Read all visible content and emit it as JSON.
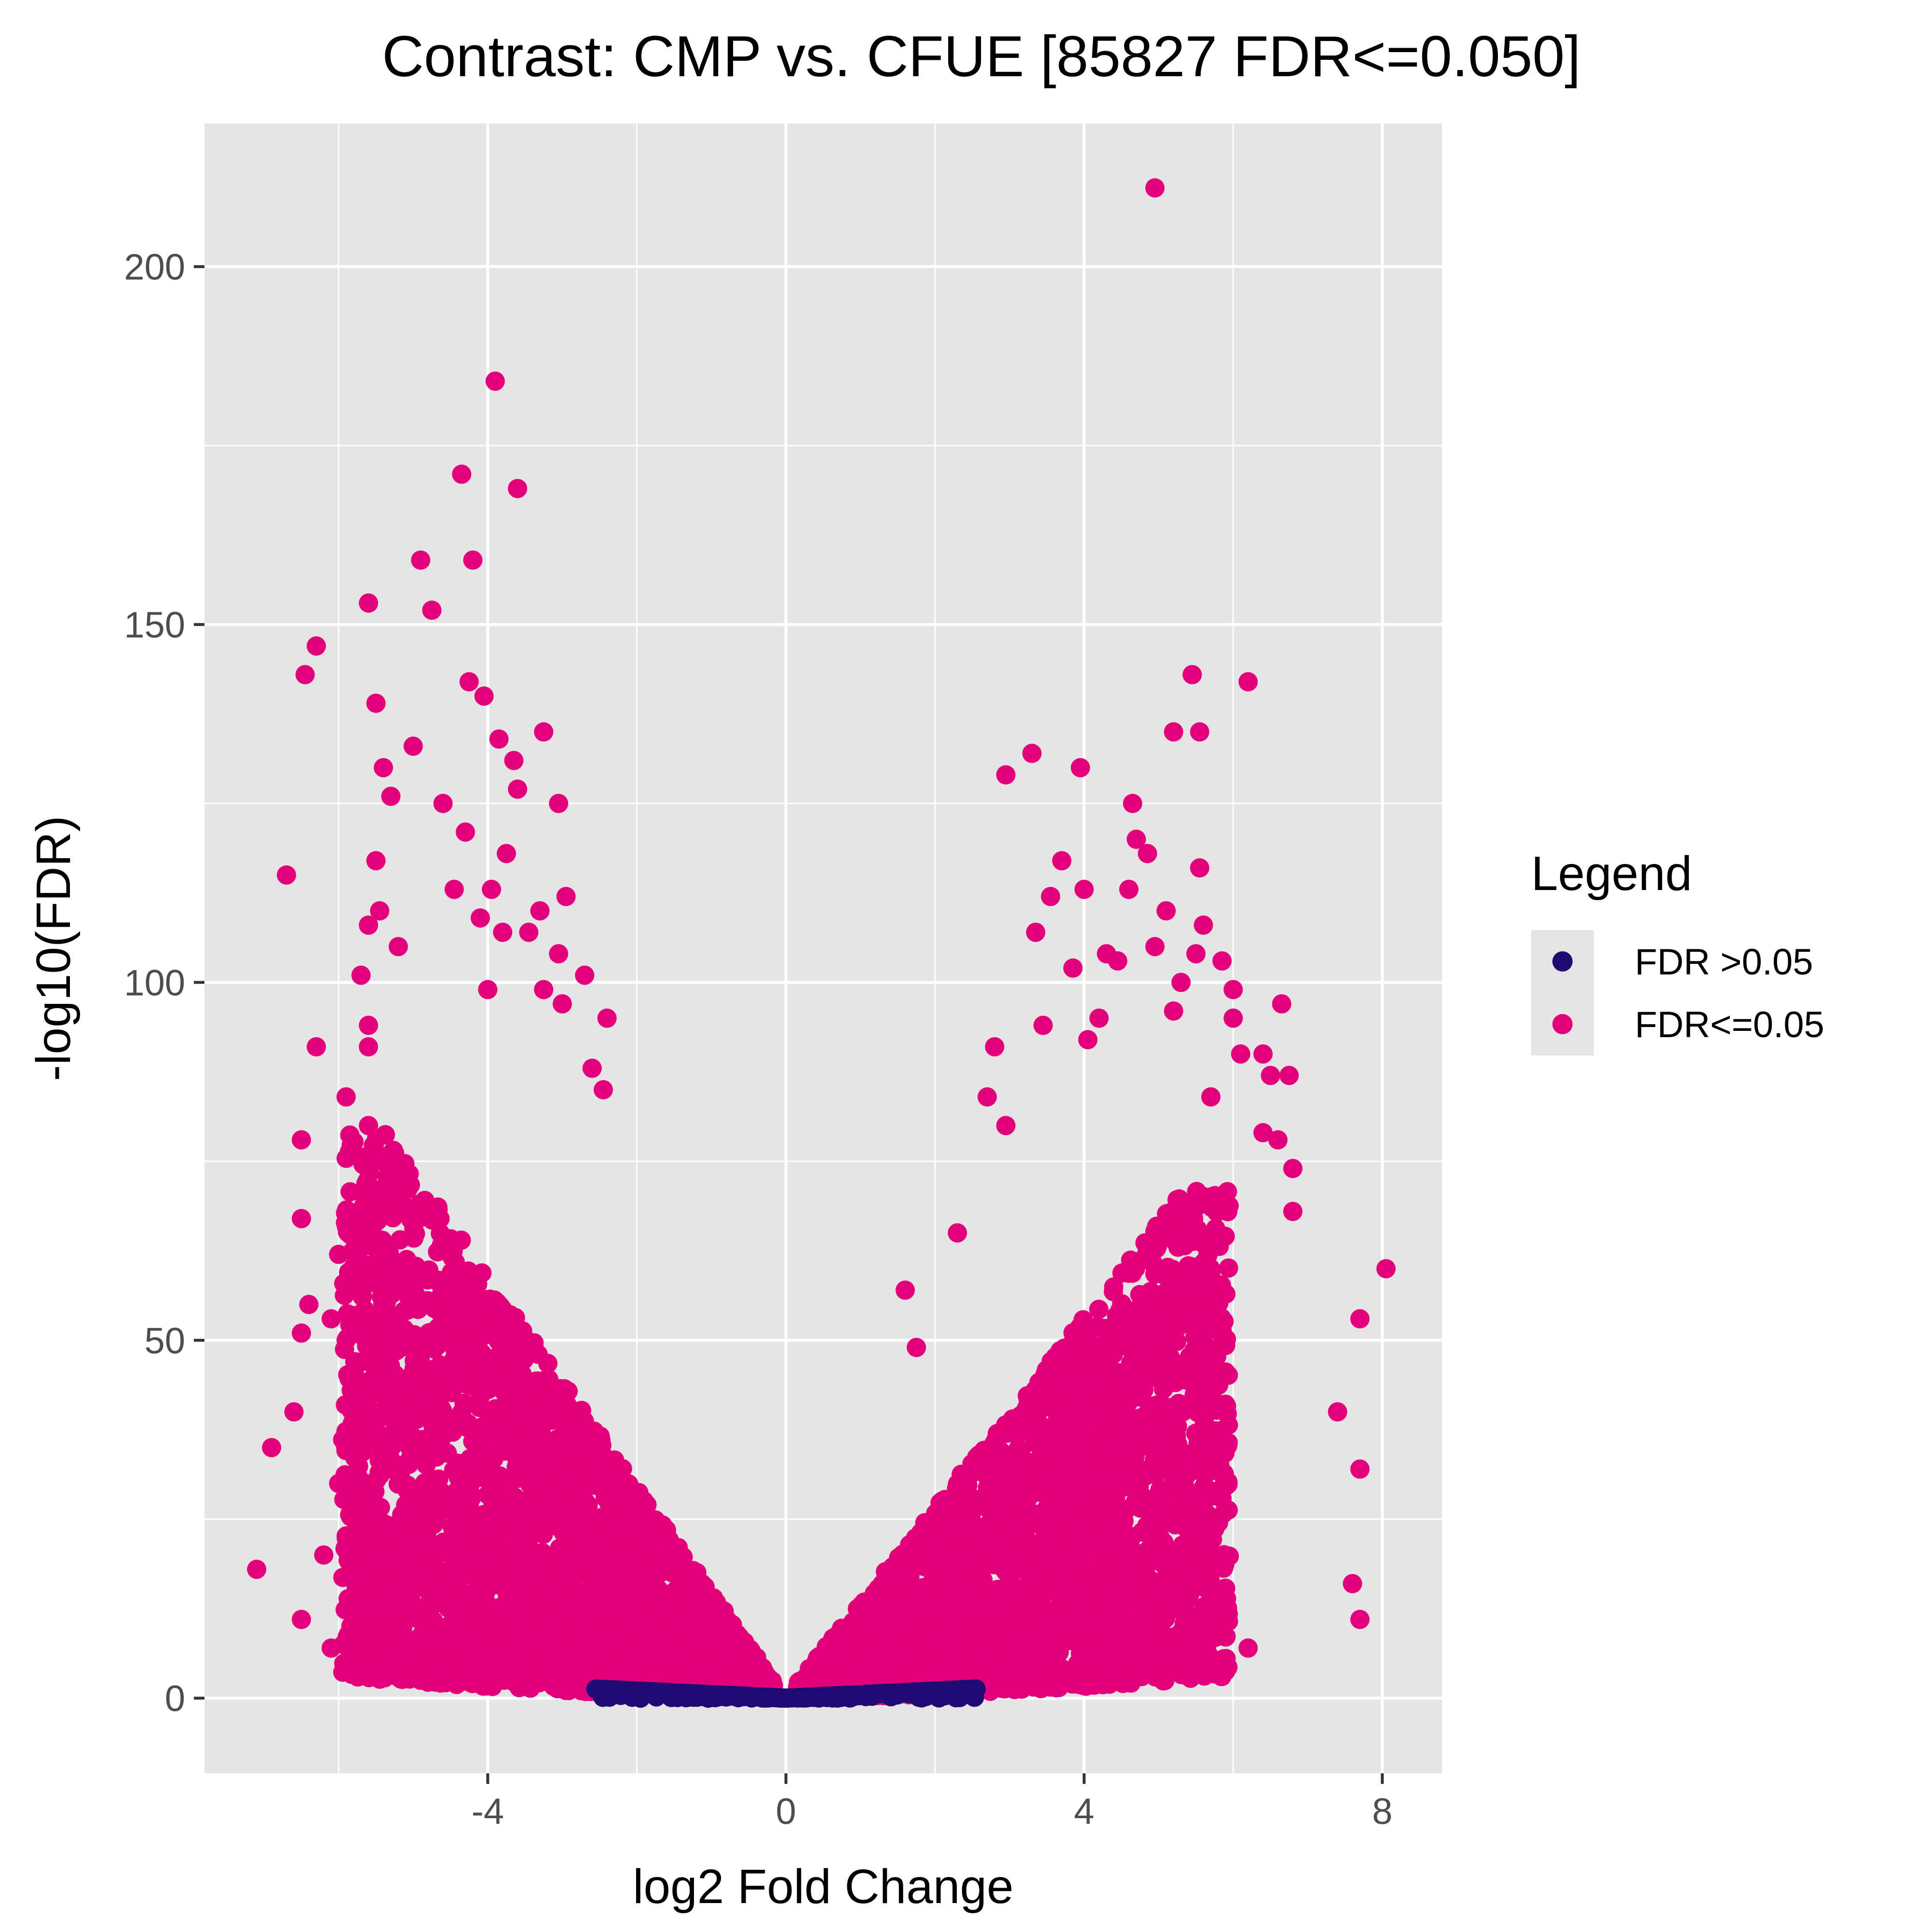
{
  "chart_data": {
    "type": "scatter",
    "title": "Contrast: CMP vs. CFUE  [85827 FDR<=0.050]",
    "xlabel": "log2 Fold Change",
    "ylabel": "-log10(FDR)",
    "xlim": [
      -7.8,
      8.8
    ],
    "ylim": [
      -10.5,
      220
    ],
    "x_ticks": [
      -4,
      0,
      4,
      8
    ],
    "x_tick_labels": [
      "-4",
      "0",
      "4",
      "8"
    ],
    "y_ticks": [
      0,
      50,
      100,
      150,
      200
    ],
    "y_tick_labels": [
      "0",
      "50",
      "100",
      "150",
      "200"
    ],
    "grid": true,
    "legend": {
      "title": "Legend",
      "placement": "right",
      "entries": [
        {
          "label": "FDR >0.05",
          "color": "#1f0a73"
        },
        {
          "label": "FDR<=0.05",
          "color": "#e5007b"
        }
      ]
    },
    "colors": {
      "panel_background": "#e5e5e5",
      "grid": "#ffffff",
      "not_significant": "#1f0a73",
      "significant": "#e5007b"
    },
    "series": [
      {
        "name": "FDR<=0.05",
        "color": "#e5007b",
        "density_note": "dense cloud of ~85827 points",
        "points": [
          [
            4.95,
            211
          ],
          [
            -3.9,
            184
          ],
          [
            -4.35,
            171
          ],
          [
            -3.6,
            169
          ],
          [
            -4.9,
            159
          ],
          [
            -4.2,
            159
          ],
          [
            -5.6,
            153
          ],
          [
            -4.75,
            152
          ],
          [
            -6.3,
            147
          ],
          [
            -6.45,
            143
          ],
          [
            5.45,
            143
          ],
          [
            6.2,
            142
          ],
          [
            -4.25,
            142
          ],
          [
            -4.05,
            140
          ],
          [
            -5.5,
            139
          ],
          [
            -3.85,
            134
          ],
          [
            -3.25,
            135
          ],
          [
            5.2,
            135
          ],
          [
            5.55,
            135
          ],
          [
            -5.0,
            133
          ],
          [
            3.3,
            132
          ],
          [
            2.95,
            129
          ],
          [
            3.95,
            130
          ],
          [
            -3.65,
            131
          ],
          [
            -5.4,
            130
          ],
          [
            -3.6,
            127
          ],
          [
            -5.3,
            126
          ],
          [
            -4.6,
            125
          ],
          [
            -3.05,
            125
          ],
          [
            4.65,
            125
          ],
          [
            -4.3,
            121
          ],
          [
            4.7,
            120
          ],
          [
            4.85,
            118
          ],
          [
            -3.75,
            118
          ],
          [
            -5.5,
            117
          ],
          [
            3.7,
            117
          ],
          [
            -6.7,
            115
          ],
          [
            5.55,
            116
          ],
          [
            -4.45,
            113
          ],
          [
            -3.95,
            113
          ],
          [
            -2.95,
            112
          ],
          [
            4.0,
            113
          ],
          [
            4.6,
            113
          ],
          [
            3.55,
            112
          ],
          [
            -5.45,
            110
          ],
          [
            -3.3,
            110
          ],
          [
            -4.1,
            109
          ],
          [
            5.1,
            110
          ],
          [
            -5.6,
            108
          ],
          [
            -3.8,
            107
          ],
          [
            -3.45,
            107
          ],
          [
            3.35,
            107
          ],
          [
            5.6,
            108
          ],
          [
            -5.2,
            105
          ],
          [
            -3.05,
            104
          ],
          [
            4.3,
            104
          ],
          [
            4.95,
            105
          ],
          [
            5.5,
            104
          ],
          [
            5.85,
            103
          ],
          [
            -5.7,
            101
          ],
          [
            -2.7,
            101
          ],
          [
            3.85,
            102
          ],
          [
            4.45,
            103
          ],
          [
            -4.0,
            99
          ],
          [
            -3.25,
            99
          ],
          [
            5.3,
            100
          ],
          [
            6.0,
            99
          ],
          [
            -5.6,
            94
          ],
          [
            -3.0,
            97
          ],
          [
            6.65,
            97
          ],
          [
            -6.3,
            91
          ],
          [
            -2.4,
            95
          ],
          [
            3.45,
            94
          ],
          [
            4.2,
            95
          ],
          [
            5.2,
            96
          ],
          [
            6.0,
            95
          ],
          [
            -5.6,
            91
          ],
          [
            -2.6,
            88
          ],
          [
            2.8,
            91
          ],
          [
            4.05,
            92
          ],
          [
            6.1,
            90
          ],
          [
            6.4,
            90
          ],
          [
            6.5,
            87
          ],
          [
            6.75,
            87
          ],
          [
            -5.9,
            84
          ],
          [
            -2.45,
            85
          ],
          [
            2.7,
            84
          ],
          [
            5.7,
            84
          ],
          [
            -5.6,
            80
          ],
          [
            2.95,
            80
          ],
          [
            6.4,
            79
          ],
          [
            -6.5,
            78
          ],
          [
            6.6,
            78
          ],
          [
            6.8,
            74
          ],
          [
            -6.5,
            67
          ],
          [
            6.8,
            68
          ],
          [
            -6.0,
            62
          ],
          [
            2.3,
            65
          ],
          [
            8.05,
            60
          ],
          [
            -6.4,
            55
          ],
          [
            -6.1,
            53
          ],
          [
            1.6,
            57
          ],
          [
            -6.5,
            51
          ],
          [
            -5.9,
            50
          ],
          [
            7.7,
            53
          ],
          [
            1.75,
            49
          ],
          [
            -6.6,
            40
          ],
          [
            7.4,
            40
          ],
          [
            -6.9,
            35
          ],
          [
            -6.0,
            30
          ],
          [
            7.7,
            32
          ],
          [
            -6.2,
            20
          ],
          [
            -7.1,
            18
          ],
          [
            -6.5,
            11
          ],
          [
            7.6,
            16
          ],
          [
            7.7,
            11
          ],
          [
            -6.1,
            7
          ],
          [
            6.2,
            7
          ],
          [
            -2.0,
            4
          ],
          [
            -1.3,
            3
          ],
          [
            -0.6,
            2
          ],
          [
            0.6,
            2
          ],
          [
            1.2,
            3
          ],
          [
            2.0,
            4
          ],
          [
            3.0,
            4
          ],
          [
            4.5,
            5
          ],
          [
            -4.5,
            8
          ],
          [
            -3.5,
            20
          ],
          [
            -4.0,
            40
          ],
          [
            -3.0,
            30
          ],
          [
            -2.0,
            15
          ],
          [
            3.5,
            30
          ],
          [
            4.5,
            40
          ],
          [
            2.5,
            15
          ],
          [
            4.0,
            20
          ],
          [
            5.0,
            25
          ]
        ]
      },
      {
        "name": "FDR >0.05",
        "color": "#1f0a73",
        "x_range": [
          -2.55,
          2.55
        ],
        "y_range": [
          0,
          1.3
        ]
      }
    ]
  }
}
